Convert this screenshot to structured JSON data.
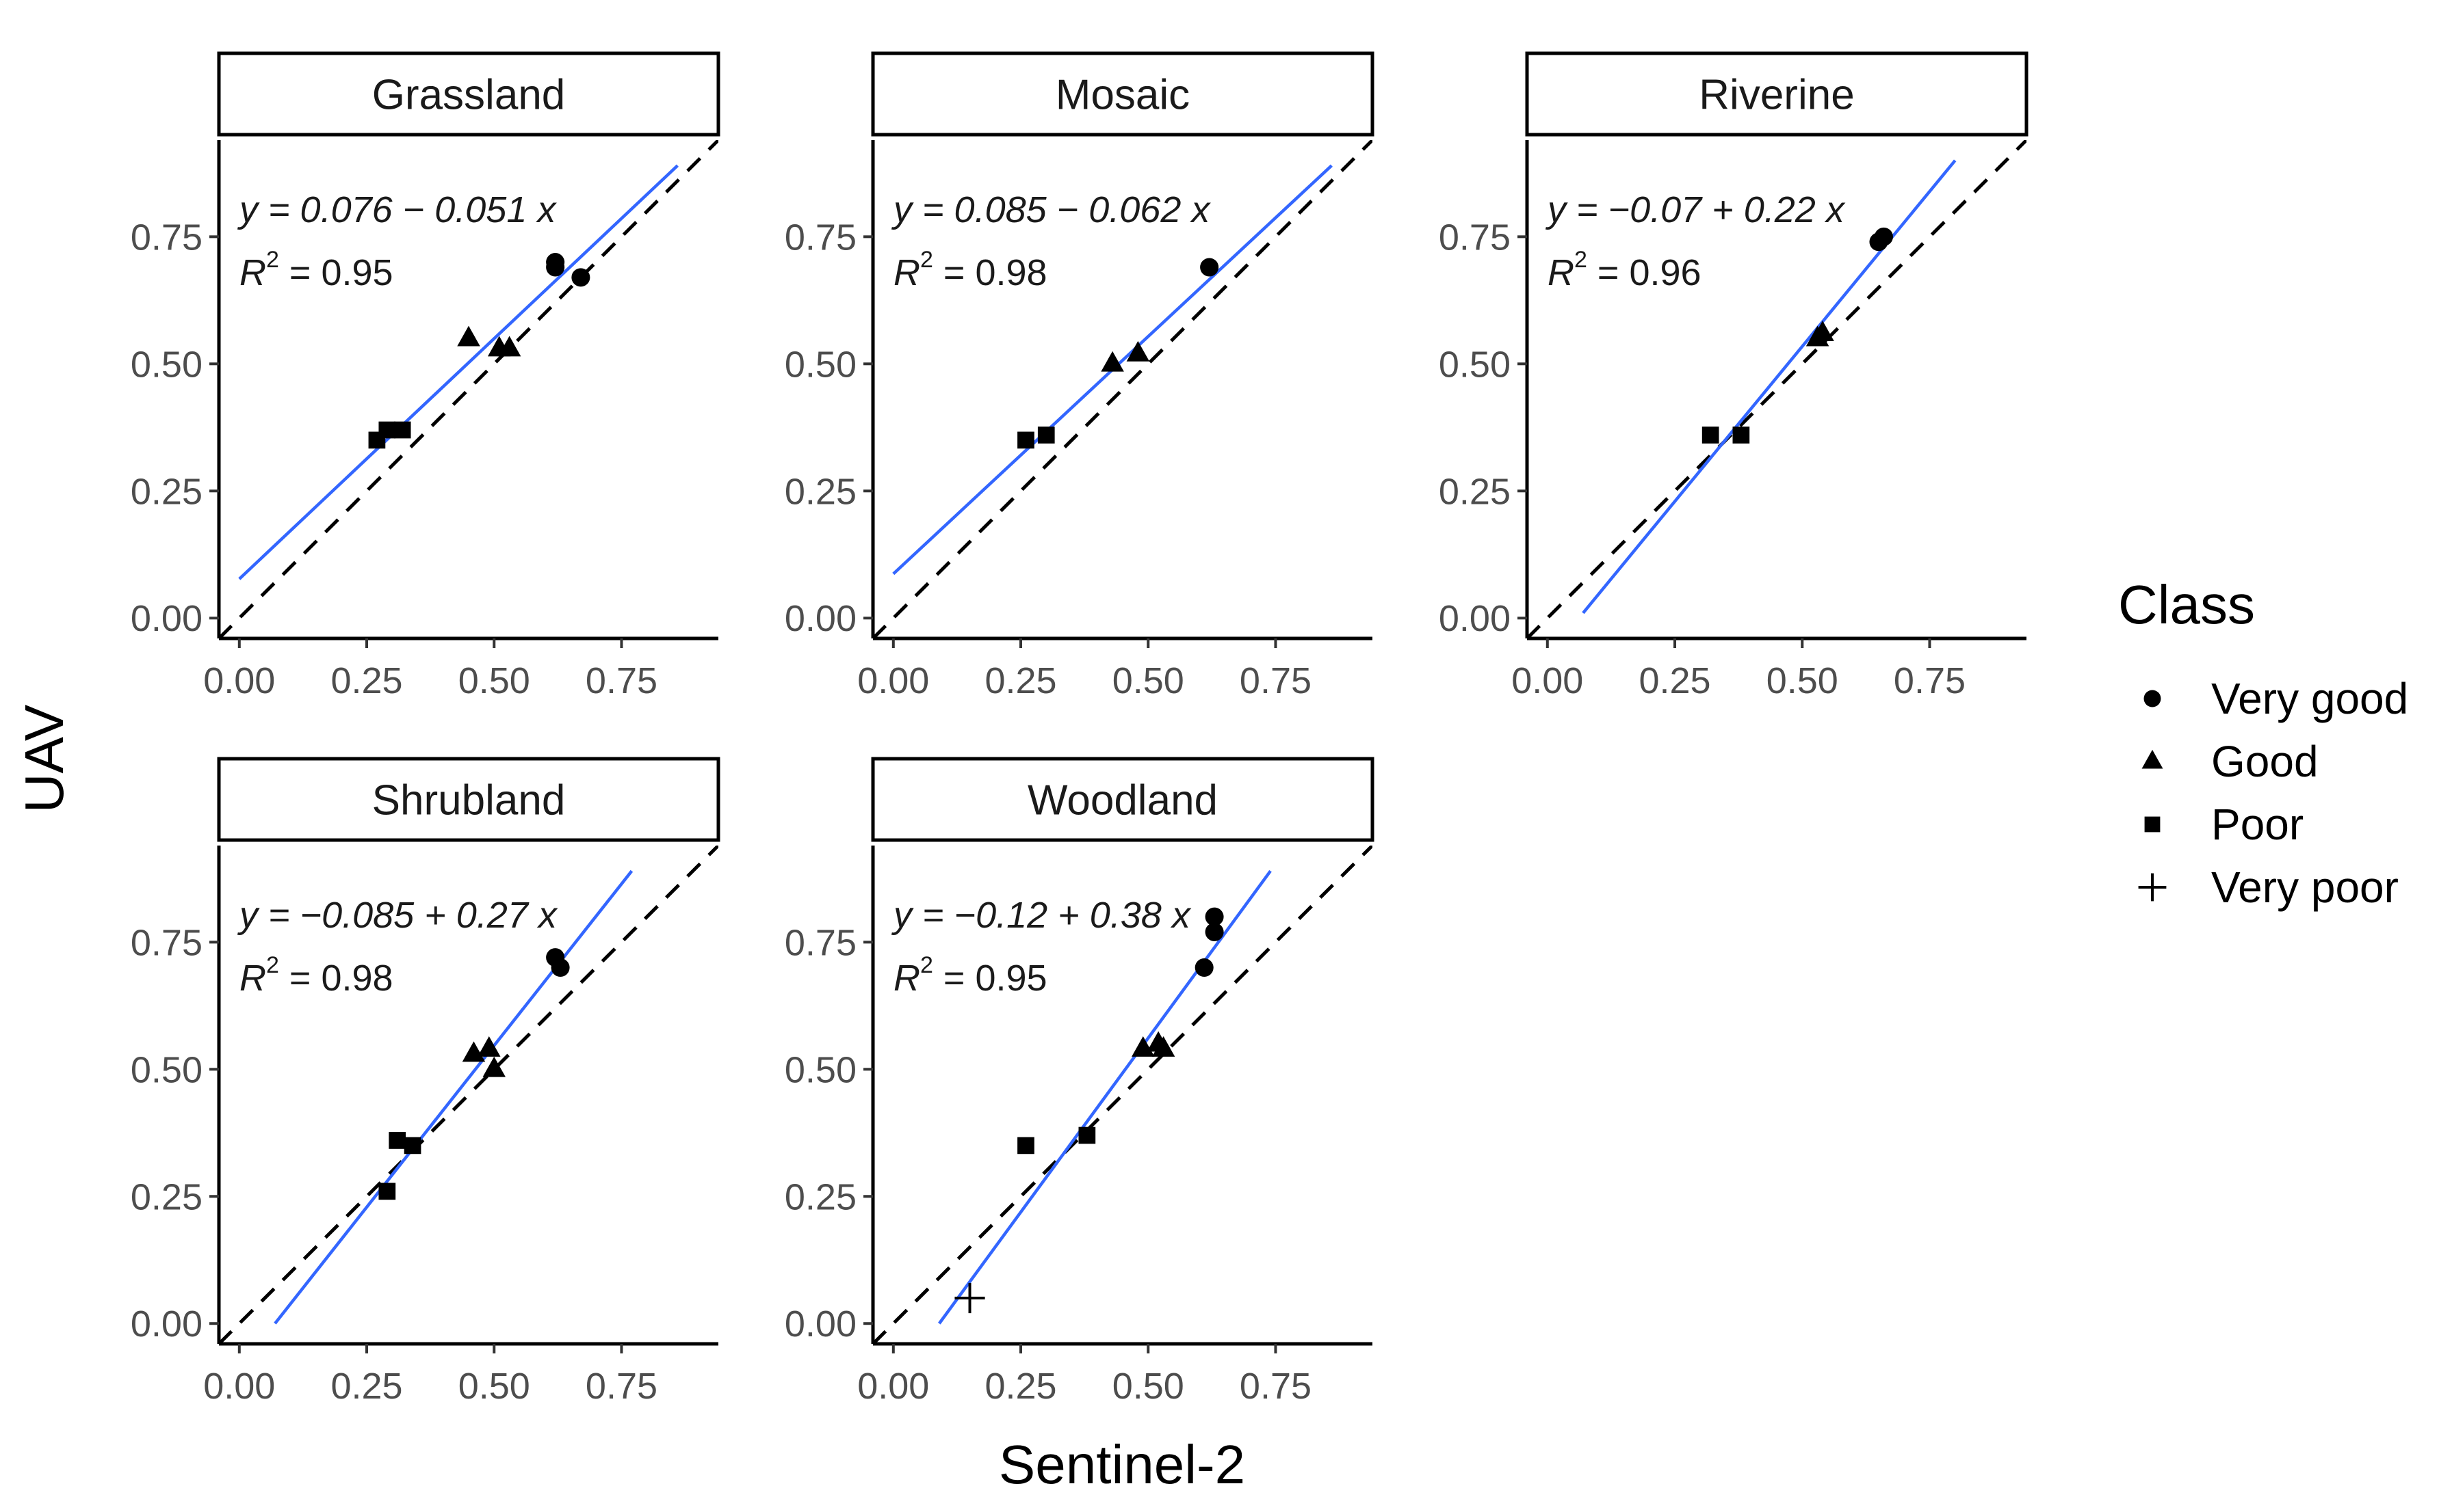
{
  "chart_data": {
    "type": "scatter",
    "x_label": "Sentinel-2",
    "y_label": "UAV",
    "xlim": [
      -0.04,
      0.94
    ],
    "ylim": [
      -0.04,
      0.94
    ],
    "x_ticks": [
      "0.00",
      "0.25",
      "0.50",
      "0.75"
    ],
    "y_ticks": [
      "0.00",
      "0.25",
      "0.50",
      "0.75"
    ],
    "tick_values": [
      0,
      0.25,
      0.5,
      0.75
    ],
    "legend": {
      "title": "Class",
      "entries": [
        {
          "label": "Very good",
          "shape": "circle"
        },
        {
          "label": "Good",
          "shape": "triangle"
        },
        {
          "label": "Poor",
          "shape": "square"
        },
        {
          "label": "Very poor",
          "shape": "plus"
        }
      ]
    },
    "panels": [
      {
        "name": "Grassland",
        "equation": "y = 0.076 − 0.051 x",
        "r2_label": "R",
        "r2_value": " = 0.95",
        "fit": {
          "x0": 0.0,
          "y0": 0.077,
          "x1": 0.86,
          "y1": 0.89
        },
        "points": [
          {
            "x": 0.62,
            "y": 0.7,
            "class": "Very good"
          },
          {
            "x": 0.62,
            "y": 0.69,
            "class": "Very good"
          },
          {
            "x": 0.67,
            "y": 0.67,
            "class": "Very good"
          },
          {
            "x": 0.45,
            "y": 0.55,
            "class": "Good"
          },
          {
            "x": 0.51,
            "y": 0.53,
            "class": "Good"
          },
          {
            "x": 0.53,
            "y": 0.53,
            "class": "Good"
          },
          {
            "x": 0.27,
            "y": 0.35,
            "class": "Poor"
          },
          {
            "x": 0.29,
            "y": 0.37,
            "class": "Poor"
          },
          {
            "x": 0.32,
            "y": 0.37,
            "class": "Poor"
          }
        ]
      },
      {
        "name": "Mosaic",
        "equation": "y = 0.085 − 0.062 x",
        "r2_label": "R",
        "r2_value": " = 0.98",
        "fit": {
          "x0": 0.0,
          "y0": 0.087,
          "x1": 0.86,
          "y1": 0.89
        },
        "points": [
          {
            "x": 0.62,
            "y": 0.69,
            "class": "Very good"
          },
          {
            "x": 0.43,
            "y": 0.5,
            "class": "Good"
          },
          {
            "x": 0.48,
            "y": 0.52,
            "class": "Good"
          },
          {
            "x": 0.26,
            "y": 0.35,
            "class": "Poor"
          },
          {
            "x": 0.3,
            "y": 0.36,
            "class": "Poor"
          }
        ]
      },
      {
        "name": "Riverine",
        "equation": "y = −0.07 + 0.22 x",
        "r2_label": "R",
        "r2_value": " = 0.96",
        "fit": {
          "x0": 0.07,
          "y0": 0.01,
          "x1": 0.8,
          "y1": 0.9
        },
        "points": [
          {
            "x": 0.66,
            "y": 0.75,
            "class": "Very good"
          },
          {
            "x": 0.65,
            "y": 0.74,
            "class": "Very good"
          },
          {
            "x": 0.53,
            "y": 0.55,
            "class": "Good"
          },
          {
            "x": 0.54,
            "y": 0.56,
            "class": "Good"
          },
          {
            "x": 0.32,
            "y": 0.36,
            "class": "Poor"
          },
          {
            "x": 0.38,
            "y": 0.36,
            "class": "Poor"
          }
        ]
      },
      {
        "name": "Shrubland",
        "equation": "y = −0.085 + 0.27 x",
        "r2_label": "R",
        "r2_value": " = 0.98",
        "fit": {
          "x0": 0.07,
          "y0": 0.0,
          "x1": 0.77,
          "y1": 0.89
        },
        "points": [
          {
            "x": 0.62,
            "y": 0.72,
            "class": "Very good"
          },
          {
            "x": 0.63,
            "y": 0.7,
            "class": "Very good"
          },
          {
            "x": 0.46,
            "y": 0.53,
            "class": "Good"
          },
          {
            "x": 0.49,
            "y": 0.54,
            "class": "Good"
          },
          {
            "x": 0.5,
            "y": 0.5,
            "class": "Good"
          },
          {
            "x": 0.29,
            "y": 0.26,
            "class": "Poor"
          },
          {
            "x": 0.31,
            "y": 0.36,
            "class": "Poor"
          },
          {
            "x": 0.34,
            "y": 0.35,
            "class": "Poor"
          }
        ]
      },
      {
        "name": "Woodland",
        "equation": "y = −0.12 + 0.38 x",
        "r2_label": "R",
        "r2_value": " = 0.95",
        "fit": {
          "x0": 0.09,
          "y0": 0.0,
          "x1": 0.74,
          "y1": 0.89
        },
        "points": [
          {
            "x": 0.63,
            "y": 0.8,
            "class": "Very good"
          },
          {
            "x": 0.63,
            "y": 0.77,
            "class": "Very good"
          },
          {
            "x": 0.61,
            "y": 0.7,
            "class": "Very good"
          },
          {
            "x": 0.49,
            "y": 0.54,
            "class": "Good"
          },
          {
            "x": 0.52,
            "y": 0.55,
            "class": "Good"
          },
          {
            "x": 0.53,
            "y": 0.54,
            "class": "Good"
          },
          {
            "x": 0.26,
            "y": 0.35,
            "class": "Poor"
          },
          {
            "x": 0.38,
            "y": 0.37,
            "class": "Poor"
          },
          {
            "x": 0.15,
            "y": 0.05,
            "class": "Very poor"
          }
        ]
      }
    ]
  }
}
